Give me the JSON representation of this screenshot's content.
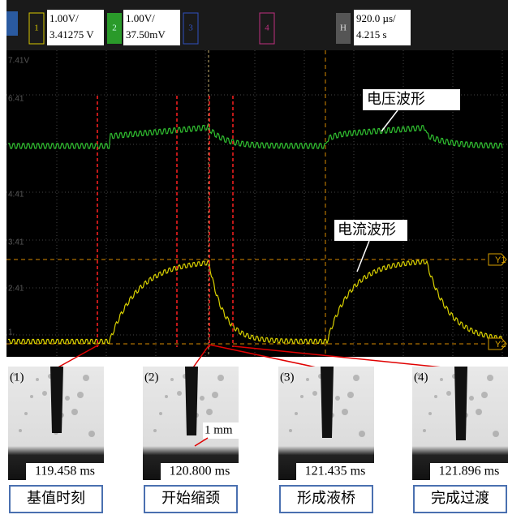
{
  "toolbar": {
    "ch1": {
      "number": "1",
      "scale": "1.00V/",
      "offset": "3.41275 V"
    },
    "ch2": {
      "number": "2",
      "scale": "1.00V/",
      "offset": "37.50mV"
    },
    "ch3": {
      "number": "3"
    },
    "ch4": {
      "number": "4"
    },
    "horizontal": {
      "label": "H",
      "scale": "920.0 µs/",
      "delay": "4.215 s"
    }
  },
  "scope": {
    "y_labels": [
      "7.41V",
      "6.41",
      "4.41",
      "3.41",
      "2.41",
      "1."
    ],
    "markers": [
      "Y1",
      "Y2"
    ],
    "annotations": {
      "voltage": "电压波形",
      "current": "电流波形"
    }
  },
  "panels": [
    {
      "index": "(1)",
      "time": "119.458 ms",
      "label": "基值时刻"
    },
    {
      "index": "(2)",
      "time": "120.800 ms",
      "label": "开始缩颈"
    },
    {
      "index": "(3)",
      "time": "121.435 ms",
      "label": "形成液桥"
    },
    {
      "index": "(4)",
      "time": "121.896 ms",
      "label": "完成过渡"
    }
  ],
  "scale_bar": "1 mm"
}
